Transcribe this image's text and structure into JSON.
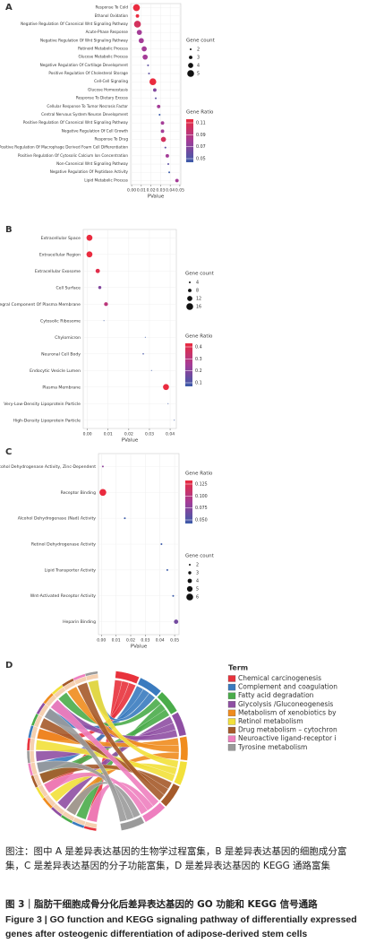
{
  "chart_data": [
    {
      "type": "dot",
      "panel_label": "A",
      "x_label": "PValue",
      "categories": [
        "Response To Cold",
        "Ethanol Oxidation",
        "Negative Regulation Of Canonical Wnt Signaling Pathway",
        "Acute-Phase Response",
        "Negative Regulation Of Wnt Signaling Pathway",
        "Retinoid Metabolic Process",
        "Glucose Metabolic Process",
        "Negative Regulation Of Cartilage Development",
        "Positive Regulation Of Cholesterol Storage",
        "Cell-Cell Signaling",
        "Glucose Homeostasis",
        "Response To Dietary Excess",
        "Cellular Response To Tumor Necrosis Factor",
        "Central Nervous System Neuron Development",
        "Positive Regulation Of Canonical Wnt Signaling Pathway",
        "Negative Regulation Of Cell Growth",
        "Response To Drug",
        "Positive Regulation Of Macrophage Derived Foam Cell Differentiation",
        "Positive Regulation Of Cytosolic Calcium Ion Concentration",
        "Non-Canonical Wnt Signaling Pathway",
        "Negative Regulation Of Peptidase Activity",
        "Lipid Metabolic Process"
      ],
      "values": [
        0.005,
        0.006,
        0.006,
        0.008,
        0.01,
        0.013,
        0.014,
        0.017,
        0.018,
        0.022,
        0.024,
        0.025,
        0.028,
        0.029,
        0.032,
        0.032,
        0.033,
        0.035,
        0.037,
        0.038,
        0.039,
        0.047
      ],
      "gene_count": [
        5,
        3,
        5,
        4,
        4,
        4,
        4,
        2,
        2,
        5,
        3,
        2,
        3,
        2,
        3,
        3,
        4,
        2,
        3,
        2,
        2,
        3
      ],
      "gene_ratio": [
        0.11,
        0.11,
        0.1,
        0.08,
        0.08,
        0.08,
        0.08,
        0.06,
        0.06,
        0.11,
        0.07,
        0.06,
        0.08,
        0.05,
        0.08,
        0.08,
        0.1,
        0.06,
        0.08,
        0.06,
        0.05,
        0.08
      ],
      "xlim": [
        -0.001,
        0.051
      ],
      "xticks": [
        {
          "value": 0,
          "label": "0.00"
        },
        {
          "value": 0.01,
          "label": "0.01"
        },
        {
          "value": 0.02,
          "label": "0.02"
        },
        {
          "value": 0.03,
          "label": "0.03"
        },
        {
          "value": 0.04,
          "label": "0.04"
        },
        {
          "value": 0.05,
          "label": "0.05"
        }
      ],
      "size_legend": {
        "title": "Gene count",
        "values": [
          2,
          3,
          4,
          5
        ]
      },
      "color_legend": {
        "title": "Gene Ratio",
        "ticks": [
          0.11,
          0.09,
          0.07,
          0.05
        ]
      },
      "color_scale": [
        "#3b5ba9",
        "#a43c97",
        "#ea2b3f"
      ]
    },
    {
      "type": "dot",
      "panel_label": "B",
      "x_label": "PValue",
      "categories": [
        "Extracellular Space",
        "Extracellular Region",
        "Extracellular Exosome",
        "Cell Surface",
        "Integral Component Of Plasma Membrane",
        "Cytosolic Ribosome",
        "Chylomicron",
        "Neuronal Cell Body",
        "Endocytic Vesicle Lumen",
        "Plasma Membrane",
        "Very-Low-Density Lipoprotein Particle",
        "High-Density Lipoprotein Particle"
      ],
      "values": [
        0.001,
        0.001,
        0.005,
        0.006,
        0.009,
        0.008,
        0.028,
        0.027,
        0.031,
        0.038,
        0.039,
        0.042
      ],
      "gene_count": [
        14,
        14,
        10,
        7,
        9,
        2,
        2,
        3,
        2,
        14,
        2,
        2
      ],
      "gene_ratio": [
        0.42,
        0.42,
        0.38,
        0.2,
        0.3,
        0.06,
        0.06,
        0.12,
        0.06,
        0.4,
        0.06,
        0.06
      ],
      "xlim": [
        -0.002,
        0.043
      ],
      "xticks": [
        {
          "value": 0,
          "label": "0.00"
        },
        {
          "value": 0.01,
          "label": "0.01"
        },
        {
          "value": 0.02,
          "label": "0.02"
        },
        {
          "value": 0.03,
          "label": "0.03"
        },
        {
          "value": 0.04,
          "label": "0.04"
        }
      ],
      "size_legend": {
        "title": "Gene count",
        "values": [
          4,
          8,
          12,
          16
        ]
      },
      "color_legend": {
        "title": "Gene Ratio",
        "ticks": [
          0.4,
          0.3,
          0.2,
          0.1
        ]
      },
      "color_scale": [
        "#3b5ba9",
        "#a43c97",
        "#ea2b3f"
      ]
    },
    {
      "type": "dot",
      "panel_label": "C",
      "x_label": "PValue",
      "categories": [
        "Alcohol Dehydrogenase Activity, Zinc-Dependent",
        "Receptor Binding",
        "Alcohol Dehydrogenase (Nad) Activity",
        "Retinol Dehydrogenase Activity",
        "Lipid Transporter Activity",
        "Wnt-Activated Receptor Activity",
        "Heparin Binding"
      ],
      "values": [
        0.001,
        0.001,
        0.016,
        0.041,
        0.045,
        0.049,
        0.051
      ],
      "gene_count": [
        2,
        6,
        2,
        2,
        2,
        2,
        4
      ],
      "gene_ratio": [
        0.08,
        0.13,
        0.05,
        0.05,
        0.05,
        0.05,
        0.07
      ],
      "xlim": [
        -0.002,
        0.053
      ],
      "xticks": [
        {
          "value": 0,
          "label": "0.00"
        },
        {
          "value": 0.01,
          "label": "0.01"
        },
        {
          "value": 0.02,
          "label": "0.02"
        },
        {
          "value": 0.03,
          "label": "0.03"
        },
        {
          "value": 0.04,
          "label": "0.04"
        },
        {
          "value": 0.05,
          "label": "0.05"
        }
      ],
      "size_legend": {
        "title": "Gene count",
        "values": [
          2,
          3,
          4,
          5,
          6
        ]
      },
      "color_legend": {
        "title": "Gene Ratio",
        "ticks": [
          0.125,
          {
            "value": 0.1,
            "label": "0.100"
          },
          0.075,
          {
            "value": 0.05,
            "label": "0.050"
          }
        ]
      },
      "color_scale": [
        "#3b5ba9",
        "#a43c97",
        "#ea2b3f"
      ]
    },
    {
      "type": "chord",
      "panel_label": "D",
      "legend_title": "Term",
      "series": [
        {
          "name": "Chemical carcinogenesis",
          "color": "#e8323c"
        },
        {
          "name": "Complement and coagulation",
          "color": "#3a7bbf"
        },
        {
          "name": "Fatty acid degradation",
          "color": "#4aac4a"
        },
        {
          "name": "Glycolysis /Gluconeogenesis",
          "color": "#8f4fa3"
        },
        {
          "name": "Metabolism of xenobiotics by",
          "color": "#f08c1e"
        },
        {
          "name": "Retinol metabolism",
          "color": "#f2e03a"
        },
        {
          "name": "Drug metabolism – cytochron",
          "color": "#a55a2a"
        },
        {
          "name": "Neuroactive ligand-receptor i",
          "color": "#ee7fbf"
        },
        {
          "name": "Tyrosine metabolism",
          "color": "#9a9a9a"
        }
      ]
    }
  ],
  "caption": {
    "note": "图注：图中 A 是差异表达基因的生物学过程富集，B 是差异表达基因的细胞成分富集，C 是差异表达基因的分子功能富集，D 是差异表达基因的 KEGG 通路富集",
    "title_zh": "图 3｜脂肪干细胞成骨分化后差异表达基因的 GO 功能和 KEGG 信号通路",
    "title_en": "Figure 3 | GO function and KEGG signaling pathway of differentially expressed genes after osteogenic differentiation of adipose-derived stem cells"
  }
}
